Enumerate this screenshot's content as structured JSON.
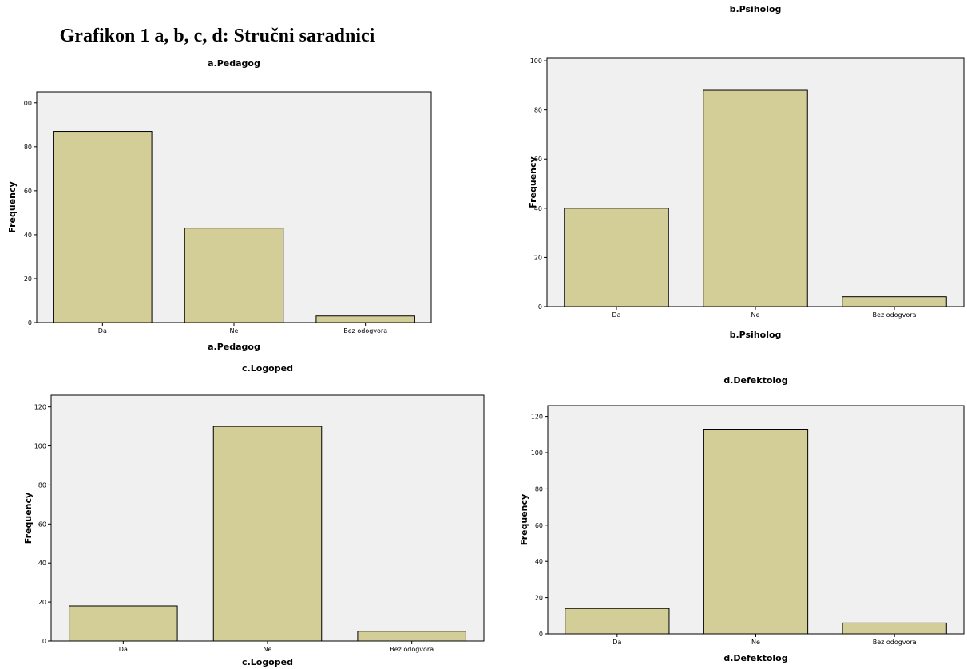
{
  "figure_title": "Grafikon 1 a, b, c, d: Stručni saradnici",
  "chart_data": [
    {
      "type": "bar",
      "title": "a.Pedagog",
      "xlabel": "a.Pedagog",
      "ylabel": "Frequency",
      "categories": [
        "Da",
        "Ne",
        "Bez odogvora"
      ],
      "values": [
        87,
        43,
        3
      ],
      "ylim": [
        0,
        105
      ],
      "yticks": [
        0,
        20,
        40,
        60,
        80,
        100
      ],
      "grid": false,
      "colors": {
        "bar": "#d3ce97",
        "plot_bg": "#f0f0f0"
      }
    },
    {
      "type": "bar",
      "title": "b.Psiholog",
      "xlabel": "b.Psiholog",
      "ylabel": "Frequency",
      "categories": [
        "Da",
        "Ne",
        "Bez odogvora"
      ],
      "values": [
        40,
        88,
        4
      ],
      "ylim": [
        0,
        101
      ],
      "yticks": [
        0,
        20,
        40,
        60,
        80,
        100
      ],
      "grid": false,
      "colors": {
        "bar": "#d3ce97",
        "plot_bg": "#f0f0f0"
      }
    },
    {
      "type": "bar",
      "title": "c.Logoped",
      "xlabel": "c.Logoped",
      "ylabel": "Frequency",
      "categories": [
        "Da",
        "Ne",
        "Bez odogvora"
      ],
      "values": [
        18,
        110,
        5
      ],
      "ylim": [
        0,
        126
      ],
      "yticks": [
        0,
        20,
        40,
        60,
        80,
        100,
        120
      ],
      "grid": false,
      "colors": {
        "bar": "#d3ce97",
        "plot_bg": "#f0f0f0"
      }
    },
    {
      "type": "bar",
      "title": "d.Defektolog",
      "xlabel": "d.Defektolog",
      "ylabel": "Frequency",
      "categories": [
        "Da",
        "Ne",
        "Bez odogvora"
      ],
      "values": [
        14,
        113,
        6
      ],
      "ylim": [
        0,
        126
      ],
      "yticks": [
        0,
        20,
        40,
        60,
        80,
        100,
        120
      ],
      "grid": false,
      "colors": {
        "bar": "#d3ce97",
        "plot_bg": "#f0f0f0"
      }
    }
  ]
}
